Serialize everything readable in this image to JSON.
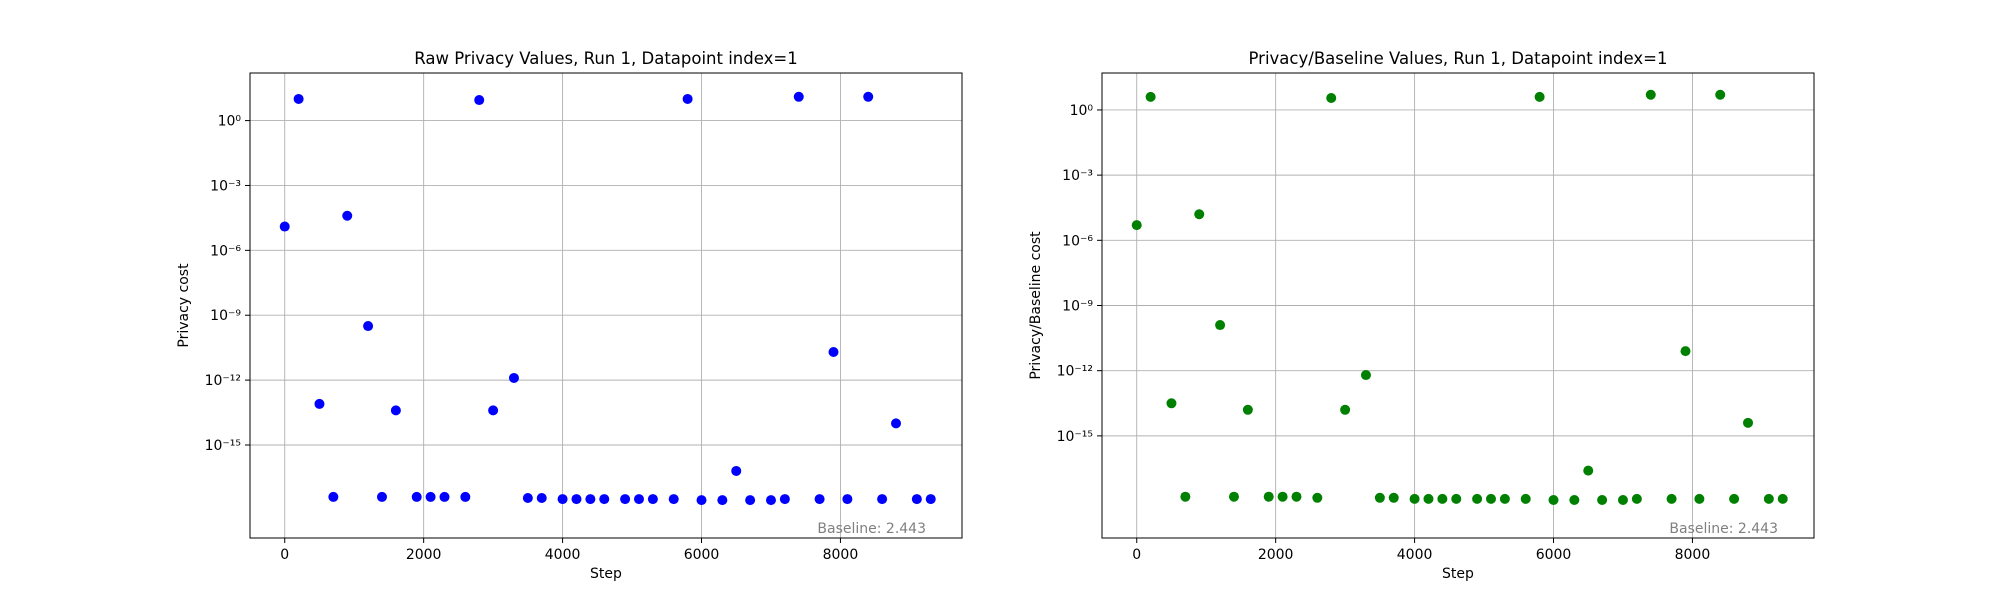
{
  "chart_data": [
    {
      "type": "scatter",
      "title": "Raw Privacy Values, Run 1, Datapoint index=1",
      "xlabel": "Step",
      "ylabel": "Privacy cost",
      "xlim": [
        -500,
        9750
      ],
      "ylim_log10": [
        -19.3,
        2.2
      ],
      "yscale": "log",
      "grid": true,
      "color": "#0000ff",
      "xticks": [
        0,
        2000,
        4000,
        6000,
        8000
      ],
      "yticks_log10": [
        0,
        -3,
        -6,
        -9,
        -12,
        -15
      ],
      "annotation": "Baseline: 2.443",
      "points": [
        {
          "x": 0,
          "log10_y": -4.9
        },
        {
          "x": 200,
          "log10_y": 1.0
        },
        {
          "x": 500,
          "log10_y": -13.1
        },
        {
          "x": 700,
          "log10_y": -17.4
        },
        {
          "x": 900,
          "log10_y": -4.4
        },
        {
          "x": 1200,
          "log10_y": -9.5
        },
        {
          "x": 1400,
          "log10_y": -17.4
        },
        {
          "x": 1600,
          "log10_y": -13.4
        },
        {
          "x": 1900,
          "log10_y": -17.4
        },
        {
          "x": 2100,
          "log10_y": -17.4
        },
        {
          "x": 2300,
          "log10_y": -17.4
        },
        {
          "x": 2600,
          "log10_y": -17.4
        },
        {
          "x": 2800,
          "log10_y": 0.95
        },
        {
          "x": 3000,
          "log10_y": -13.4
        },
        {
          "x": 3300,
          "log10_y": -11.9
        },
        {
          "x": 3500,
          "log10_y": -17.45
        },
        {
          "x": 3700,
          "log10_y": -17.45
        },
        {
          "x": 4000,
          "log10_y": -17.5
        },
        {
          "x": 4200,
          "log10_y": -17.5
        },
        {
          "x": 4400,
          "log10_y": -17.5
        },
        {
          "x": 4600,
          "log10_y": -17.5
        },
        {
          "x": 4900,
          "log10_y": -17.5
        },
        {
          "x": 5100,
          "log10_y": -17.5
        },
        {
          "x": 5300,
          "log10_y": -17.5
        },
        {
          "x": 5600,
          "log10_y": -17.5
        },
        {
          "x": 5800,
          "log10_y": 1.0
        },
        {
          "x": 6000,
          "log10_y": -17.55
        },
        {
          "x": 6300,
          "log10_y": -17.55
        },
        {
          "x": 6500,
          "log10_y": -16.2
        },
        {
          "x": 6700,
          "log10_y": -17.55
        },
        {
          "x": 7000,
          "log10_y": -17.55
        },
        {
          "x": 7200,
          "log10_y": -17.5
        },
        {
          "x": 7400,
          "log10_y": 1.1
        },
        {
          "x": 7700,
          "log10_y": -17.5
        },
        {
          "x": 7900,
          "log10_y": -10.7
        },
        {
          "x": 8100,
          "log10_y": -17.5
        },
        {
          "x": 8400,
          "log10_y": 1.1
        },
        {
          "x": 8600,
          "log10_y": -17.5
        },
        {
          "x": 8800,
          "log10_y": -14.0
        },
        {
          "x": 9100,
          "log10_y": -17.5
        },
        {
          "x": 9300,
          "log10_y": -17.5
        }
      ]
    },
    {
      "type": "scatter",
      "title": "Privacy/Baseline Values, Run 1, Datapoint index=1",
      "xlabel": "Step",
      "ylabel": "Privacy/Baseline cost",
      "xlim": [
        -500,
        9750
      ],
      "ylim_log10": [
        -19.7,
        1.7
      ],
      "yscale": "log",
      "grid": true,
      "color": "#008000",
      "xticks": [
        0,
        2000,
        4000,
        6000,
        8000
      ],
      "yticks_log10": [
        0,
        -3,
        -6,
        -9,
        -12,
        -15
      ],
      "annotation": "Baseline: 2.443",
      "points": [
        {
          "x": 0,
          "log10_y": -5.3
        },
        {
          "x": 200,
          "log10_y": 0.6
        },
        {
          "x": 500,
          "log10_y": -13.5
        },
        {
          "x": 700,
          "log10_y": -17.8
        },
        {
          "x": 900,
          "log10_y": -4.8
        },
        {
          "x": 1200,
          "log10_y": -9.9
        },
        {
          "x": 1400,
          "log10_y": -17.8
        },
        {
          "x": 1600,
          "log10_y": -13.8
        },
        {
          "x": 1900,
          "log10_y": -17.8
        },
        {
          "x": 2100,
          "log10_y": -17.8
        },
        {
          "x": 2300,
          "log10_y": -17.8
        },
        {
          "x": 2600,
          "log10_y": -17.85
        },
        {
          "x": 2800,
          "log10_y": 0.55
        },
        {
          "x": 3000,
          "log10_y": -13.8
        },
        {
          "x": 3300,
          "log10_y": -12.2
        },
        {
          "x": 3500,
          "log10_y": -17.85
        },
        {
          "x": 3700,
          "log10_y": -17.85
        },
        {
          "x": 4000,
          "log10_y": -17.9
        },
        {
          "x": 4200,
          "log10_y": -17.9
        },
        {
          "x": 4400,
          "log10_y": -17.9
        },
        {
          "x": 4600,
          "log10_y": -17.9
        },
        {
          "x": 4900,
          "log10_y": -17.9
        },
        {
          "x": 5100,
          "log10_y": -17.9
        },
        {
          "x": 5300,
          "log10_y": -17.9
        },
        {
          "x": 5600,
          "log10_y": -17.9
        },
        {
          "x": 5800,
          "log10_y": 0.6
        },
        {
          "x": 6000,
          "log10_y": -17.95
        },
        {
          "x": 6300,
          "log10_y": -17.95
        },
        {
          "x": 6500,
          "log10_y": -16.6
        },
        {
          "x": 6700,
          "log10_y": -17.95
        },
        {
          "x": 7000,
          "log10_y": -17.95
        },
        {
          "x": 7200,
          "log10_y": -17.9
        },
        {
          "x": 7400,
          "log10_y": 0.7
        },
        {
          "x": 7700,
          "log10_y": -17.9
        },
        {
          "x": 7900,
          "log10_y": -11.1
        },
        {
          "x": 8100,
          "log10_y": -17.9
        },
        {
          "x": 8400,
          "log10_y": 0.7
        },
        {
          "x": 8600,
          "log10_y": -17.9
        },
        {
          "x": 8800,
          "log10_y": -14.4
        },
        {
          "x": 9100,
          "log10_y": -17.9
        },
        {
          "x": 9300,
          "log10_y": -17.9
        }
      ]
    }
  ]
}
